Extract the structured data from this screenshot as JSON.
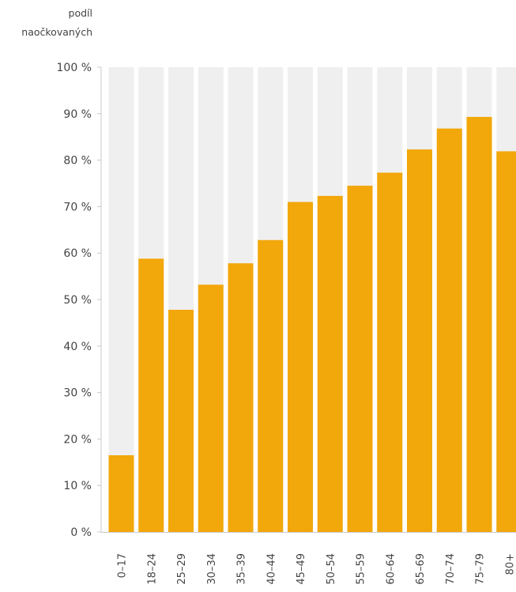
{
  "chart_data": {
    "type": "bar",
    "ylabel": [
      "podíl",
      "naočkovaných"
    ],
    "ylim": [
      0,
      100
    ],
    "yticks": [
      "0 %",
      "10 %",
      "20 %",
      "30 %",
      "40 %",
      "50 %",
      "60 %",
      "70 %",
      "80 %",
      "90 %",
      "100 %"
    ],
    "categories": [
      "0–17",
      "18–24",
      "25–29",
      "30–34",
      "35–39",
      "40–44",
      "45–49",
      "50–54",
      "55–59",
      "60–64",
      "65–69",
      "70–74",
      "75–79",
      "80+"
    ],
    "values": [
      16.5,
      58.8,
      47.8,
      53.2,
      57.8,
      62.8,
      71.0,
      72.3,
      74.5,
      77.3,
      82.3,
      86.8,
      89.3,
      81.9
    ],
    "colors": {
      "bar": "#f2a70a",
      "background_bar": "#efefef",
      "axis": "#c8c8c8"
    },
    "grid": false
  }
}
